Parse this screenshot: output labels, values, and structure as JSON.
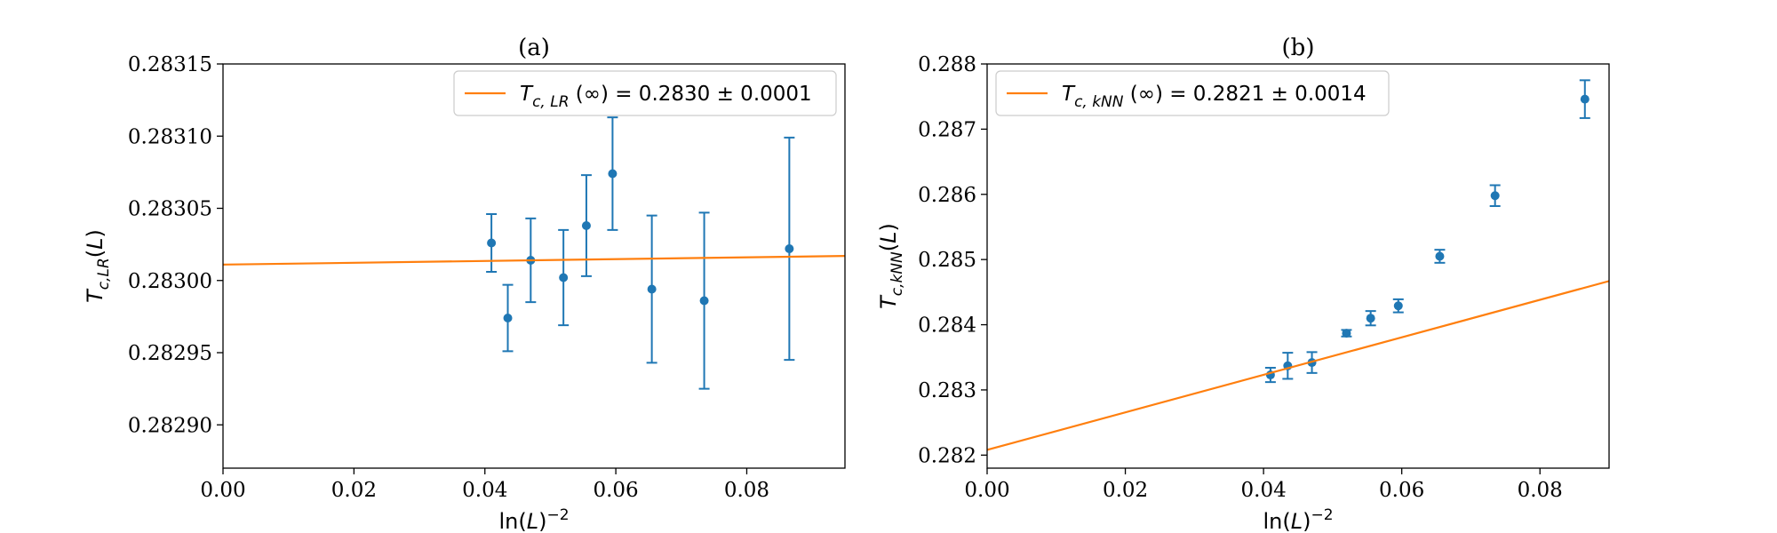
{
  "chart_data": [
    {
      "type": "scatter",
      "title": "(a)",
      "xlabel": "ln(L)⁻²",
      "ylabel": "T_{c,LR}(L)",
      "ylabel_parts": {
        "base": "T",
        "sub": "c,LR",
        "suffix": "(L)"
      },
      "xlim": [
        0.0,
        0.095
      ],
      "ylim": [
        0.28287,
        0.28315
      ],
      "x_ticks": [
        0.0,
        0.02,
        0.04,
        0.06,
        0.08
      ],
      "x_tick_labels": [
        "0.00",
        "0.02",
        "0.04",
        "0.06",
        "0.08"
      ],
      "y_ticks": [
        0.2829,
        0.28295,
        0.283,
        0.28305,
        0.2831,
        0.28315
      ],
      "y_tick_labels": [
        "0.28290",
        "0.28295",
        "0.28300",
        "0.28305",
        "0.28310",
        "0.28315"
      ],
      "grid": false,
      "legend_position": "top-right",
      "series": [
        {
          "kind": "errorbar",
          "color": "#1f77b4",
          "x": [
            0.041,
            0.0435,
            0.047,
            0.052,
            0.0555,
            0.0595,
            0.0655,
            0.0735,
            0.0865
          ],
          "y": [
            0.283026,
            0.282974,
            0.283014,
            0.283002,
            0.283038,
            0.283074,
            0.282994,
            0.282986,
            0.283022
          ],
          "yerr": [
            2e-05,
            2.3e-05,
            2.9e-05,
            3.3e-05,
            3.5e-05,
            3.9e-05,
            5.1e-05,
            6.1e-05,
            7.7e-05
          ]
        },
        {
          "kind": "line",
          "color": "#ff7f0e",
          "legend_parts": {
            "base": "T",
            "sub": "c, LR",
            "rest": " (∞) = 0.2830 ± 0.0001"
          },
          "x": [
            0.0,
            0.095
          ],
          "y": [
            0.283011,
            0.283017
          ]
        }
      ]
    },
    {
      "type": "scatter",
      "title": "(b)",
      "xlabel": "ln(L)⁻²",
      "ylabel": "T_{c,kNN}(L)",
      "ylabel_parts": {
        "base": "T",
        "sub": "c,kNN",
        "suffix": "(L)"
      },
      "xlim": [
        0.0,
        0.09
      ],
      "ylim": [
        0.2818,
        0.288
      ],
      "x_ticks": [
        0.0,
        0.02,
        0.04,
        0.06,
        0.08
      ],
      "x_tick_labels": [
        "0.00",
        "0.02",
        "0.04",
        "0.06",
        "0.08"
      ],
      "y_ticks": [
        0.282,
        0.283,
        0.284,
        0.285,
        0.286,
        0.287,
        0.288
      ],
      "y_tick_labels": [
        "0.282",
        "0.283",
        "0.284",
        "0.285",
        "0.286",
        "0.287",
        "0.288"
      ],
      "grid": false,
      "legend_position": "top-left",
      "series": [
        {
          "kind": "errorbar",
          "color": "#1f77b4",
          "x": [
            0.041,
            0.0435,
            0.047,
            0.052,
            0.0555,
            0.0595,
            0.0655,
            0.0735,
            0.0865
          ],
          "y": [
            0.28323,
            0.28337,
            0.28342,
            0.28387,
            0.2841,
            0.28429,
            0.28505,
            0.28598,
            0.28746
          ],
          "yerr": [
            0.00011,
            0.0002,
            0.00016,
            5e-05,
            0.00011,
            0.0001,
            0.0001,
            0.00016,
            0.00029
          ]
        },
        {
          "kind": "line",
          "color": "#ff7f0e",
          "legend_parts": {
            "base": "T",
            "sub": "c, kNN",
            "rest": " (∞) = 0.2821 ± 0.0014"
          },
          "x": [
            0.0,
            0.09
          ],
          "y": [
            0.28208,
            0.28467
          ]
        }
      ]
    }
  ]
}
